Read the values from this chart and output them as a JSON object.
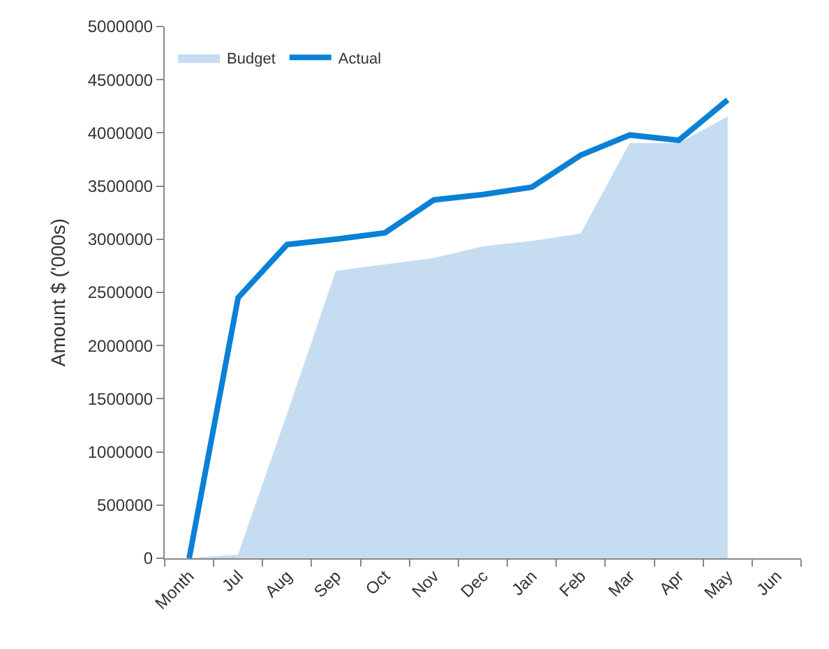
{
  "chart_data": {
    "type": "line",
    "ylabel": "Amount $ ('000s)",
    "categories": [
      "Month",
      "Jul",
      "Aug",
      "Sep",
      "Oct",
      "Nov",
      "Dec",
      "Jan",
      "Feb",
      "Mar",
      "Apr",
      "May",
      "Jun"
    ],
    "series": [
      {
        "name": "Budget",
        "type": "area",
        "color": "#c6dcf1",
        "values": [
          0,
          30000,
          1350000,
          2700000,
          2760000,
          2820000,
          2930000,
          2980000,
          3050000,
          3900000,
          3900000,
          4150000,
          null
        ]
      },
      {
        "name": "Actual",
        "color": "#0a80d6",
        "values": [
          0,
          2450000,
          2950000,
          3000000,
          3060000,
          3370000,
          3420000,
          3490000,
          3790000,
          3980000,
          3930000,
          4310000,
          null
        ]
      }
    ],
    "ylim": [
      0,
      5000000
    ],
    "yticks": [
      0,
      500000,
      1000000,
      1500000,
      2000000,
      2500000,
      3000000,
      3500000,
      4000000,
      4500000,
      5000000
    ],
    "grid": false,
    "legend": "top left",
    "marker": "none",
    "line_style": "solid"
  }
}
